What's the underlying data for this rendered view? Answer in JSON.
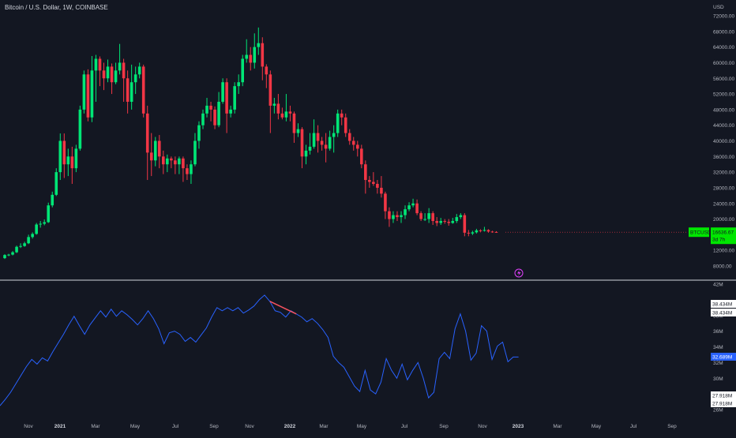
{
  "header": {
    "title": "Bitcoin / U.S. Dollar, 1W, COINBASE"
  },
  "colors": {
    "background": "#131722",
    "bullish": "#00e676",
    "bearish": "#f23645",
    "indicator_line": "#2962ff",
    "divergence_line": "#f7525f",
    "separator": "#d1d4dc",
    "price_label_bg": "#00e600",
    "indicator_label_bg": "#2962ff",
    "lightning_icon": "#e040fb"
  },
  "chart_data": [
    {
      "type": "candlestick",
      "title": "Bitcoin / U.S. Dollar, 1W, COINBASE",
      "currency_label": "USD",
      "y_ticks": [
        "72000.00",
        "68000.00",
        "64000.00",
        "60000.00",
        "56000.00",
        "52000.00",
        "48000.00",
        "44000.00",
        "40000.00",
        "36000.00",
        "32000.00",
        "28000.00",
        "24000.00",
        "20000.00",
        "16000.00",
        "12000.00",
        "8000.00"
      ],
      "ylim": [
        6000,
        74500
      ],
      "last_price_label": "BTCUSD",
      "last_price": "16636.67",
      "countdown": "3d 7h",
      "x_ticks": [
        "Nov",
        "2021",
        "Mar",
        "May",
        "Jul",
        "Sep",
        "Nov",
        "2022",
        "Mar",
        "May",
        "Jul",
        "Sep",
        "Nov",
        "2023",
        "Mar",
        "May",
        "Jul",
        "Sep"
      ],
      "year_ticks": [
        "2021",
        "2022",
        "2023"
      ],
      "candles": [
        {
          "o": 10000,
          "c": 10800,
          "h": 11000,
          "l": 9800
        },
        {
          "o": 10800,
          "c": 10900,
          "h": 11100,
          "l": 10500
        },
        {
          "o": 10900,
          "c": 11500,
          "h": 11800,
          "l": 10700
        },
        {
          "o": 11500,
          "c": 12900,
          "h": 13200,
          "l": 11300
        },
        {
          "o": 12900,
          "c": 13100,
          "h": 13800,
          "l": 12600
        },
        {
          "o": 13100,
          "c": 13800,
          "h": 14200,
          "l": 12900
        },
        {
          "o": 13800,
          "c": 15400,
          "h": 16000,
          "l": 13600
        },
        {
          "o": 15400,
          "c": 16200,
          "h": 16600,
          "l": 15000
        },
        {
          "o": 16200,
          "c": 18600,
          "h": 19000,
          "l": 16000
        },
        {
          "o": 18600,
          "c": 18800,
          "h": 19500,
          "l": 17800
        },
        {
          "o": 18800,
          "c": 19200,
          "h": 19900,
          "l": 18400
        },
        {
          "o": 19200,
          "c": 23500,
          "h": 24200,
          "l": 19000
        },
        {
          "o": 23500,
          "c": 26200,
          "h": 27000,
          "l": 23000
        },
        {
          "o": 26200,
          "c": 32000,
          "h": 33000,
          "l": 25900
        },
        {
          "o": 32000,
          "c": 40000,
          "h": 41900,
          "l": 30000
        },
        {
          "o": 40000,
          "c": 34000,
          "h": 41900,
          "l": 30500
        },
        {
          "o": 34000,
          "c": 36000,
          "h": 38000,
          "l": 31000
        },
        {
          "o": 36000,
          "c": 33000,
          "h": 38500,
          "l": 29000
        },
        {
          "o": 33000,
          "c": 38000,
          "h": 39000,
          "l": 32000
        },
        {
          "o": 38000,
          "c": 48000,
          "h": 49000,
          "l": 37500
        },
        {
          "o": 48000,
          "c": 57000,
          "h": 58000,
          "l": 47000
        },
        {
          "o": 57000,
          "c": 46000,
          "h": 58300,
          "l": 45000
        },
        {
          "o": 46000,
          "c": 58000,
          "h": 61700,
          "l": 44800
        },
        {
          "o": 58000,
          "c": 61000,
          "h": 62000,
          "l": 50000
        },
        {
          "o": 61000,
          "c": 58000,
          "h": 61600,
          "l": 54000
        },
        {
          "o": 58000,
          "c": 56000,
          "h": 60000,
          "l": 53000
        },
        {
          "o": 56000,
          "c": 59000,
          "h": 60800,
          "l": 55000
        },
        {
          "o": 59000,
          "c": 55000,
          "h": 59800,
          "l": 52000
        },
        {
          "o": 55000,
          "c": 58000,
          "h": 60000,
          "l": 54500
        },
        {
          "o": 58000,
          "c": 60000,
          "h": 64800,
          "l": 57000
        },
        {
          "o": 60000,
          "c": 56000,
          "h": 61000,
          "l": 50000
        },
        {
          "o": 56000,
          "c": 50000,
          "h": 58000,
          "l": 47000
        },
        {
          "o": 50000,
          "c": 55000,
          "h": 59500,
          "l": 48000
        },
        {
          "o": 55000,
          "c": 57000,
          "h": 59000,
          "l": 52000
        },
        {
          "o": 57000,
          "c": 59000,
          "h": 60000,
          "l": 56000
        },
        {
          "o": 59000,
          "c": 47000,
          "h": 59500,
          "l": 46000
        },
        {
          "o": 47000,
          "c": 37000,
          "h": 49000,
          "l": 30000
        },
        {
          "o": 37000,
          "c": 35000,
          "h": 42000,
          "l": 31000
        },
        {
          "o": 35000,
          "c": 40000,
          "h": 41000,
          "l": 33500
        },
        {
          "o": 40000,
          "c": 36000,
          "h": 41500,
          "l": 33000
        },
        {
          "o": 36000,
          "c": 34000,
          "h": 37500,
          "l": 31500
        },
        {
          "o": 34000,
          "c": 35500,
          "h": 36500,
          "l": 32000
        },
        {
          "o": 35500,
          "c": 35000,
          "h": 36000,
          "l": 33000
        },
        {
          "o": 35000,
          "c": 34000,
          "h": 36000,
          "l": 31500
        },
        {
          "o": 34000,
          "c": 35500,
          "h": 36000,
          "l": 31500
        },
        {
          "o": 35500,
          "c": 33000,
          "h": 36000,
          "l": 29500
        },
        {
          "o": 33000,
          "c": 31500,
          "h": 34000,
          "l": 30000
        },
        {
          "o": 31500,
          "c": 34000,
          "h": 35000,
          "l": 29000
        },
        {
          "o": 34000,
          "c": 40000,
          "h": 42000,
          "l": 33500
        },
        {
          "o": 40000,
          "c": 44000,
          "h": 45000,
          "l": 38000
        },
        {
          "o": 44000,
          "c": 47000,
          "h": 48000,
          "l": 43000
        },
        {
          "o": 47000,
          "c": 49000,
          "h": 51000,
          "l": 46000
        },
        {
          "o": 49000,
          "c": 48000,
          "h": 50000,
          "l": 45000
        },
        {
          "o": 48000,
          "c": 44000,
          "h": 48800,
          "l": 43000
        },
        {
          "o": 44000,
          "c": 50000,
          "h": 52500,
          "l": 43500
        },
        {
          "o": 50000,
          "c": 55000,
          "h": 56000,
          "l": 49500
        },
        {
          "o": 55000,
          "c": 47000,
          "h": 56000,
          "l": 42000
        },
        {
          "o": 47000,
          "c": 48000,
          "h": 49000,
          "l": 46000
        },
        {
          "o": 48000,
          "c": 54000,
          "h": 55000,
          "l": 47000
        },
        {
          "o": 54000,
          "c": 55000,
          "h": 57000,
          "l": 52000
        },
        {
          "o": 55000,
          "c": 61000,
          "h": 62000,
          "l": 54000
        },
        {
          "o": 61000,
          "c": 62000,
          "h": 66000,
          "l": 60000
        },
        {
          "o": 62000,
          "c": 60000,
          "h": 64000,
          "l": 58000
        },
        {
          "o": 60000,
          "c": 64000,
          "h": 67500,
          "l": 58500
        },
        {
          "o": 64000,
          "c": 65000,
          "h": 69000,
          "l": 62000
        },
        {
          "o": 65000,
          "c": 59000,
          "h": 66500,
          "l": 55500
        },
        {
          "o": 59000,
          "c": 57000,
          "h": 59600,
          "l": 53500
        },
        {
          "o": 57000,
          "c": 49000,
          "h": 58000,
          "l": 42000
        },
        {
          "o": 49000,
          "c": 49500,
          "h": 51000,
          "l": 47000
        },
        {
          "o": 49500,
          "c": 47000,
          "h": 52000,
          "l": 45500
        },
        {
          "o": 47000,
          "c": 46000,
          "h": 48500,
          "l": 45500
        },
        {
          "o": 46000,
          "c": 47500,
          "h": 52000,
          "l": 45000
        },
        {
          "o": 47500,
          "c": 47000,
          "h": 49000,
          "l": 45000
        },
        {
          "o": 47000,
          "c": 42000,
          "h": 47500,
          "l": 39500
        },
        {
          "o": 42000,
          "c": 43000,
          "h": 44500,
          "l": 41000
        },
        {
          "o": 43000,
          "c": 36000,
          "h": 43500,
          "l": 33000
        },
        {
          "o": 36000,
          "c": 37500,
          "h": 39000,
          "l": 34000
        },
        {
          "o": 37500,
          "c": 38500,
          "h": 42000,
          "l": 36500
        },
        {
          "o": 38500,
          "c": 42000,
          "h": 45500,
          "l": 38000
        },
        {
          "o": 42000,
          "c": 40000,
          "h": 44000,
          "l": 37000
        },
        {
          "o": 40000,
          "c": 39000,
          "h": 41000,
          "l": 37500
        },
        {
          "o": 39000,
          "c": 38000,
          "h": 42000,
          "l": 34500
        },
        {
          "o": 38000,
          "c": 41000,
          "h": 42600,
          "l": 37500
        },
        {
          "o": 41000,
          "c": 42000,
          "h": 44000,
          "l": 37000
        },
        {
          "o": 42000,
          "c": 47000,
          "h": 48000,
          "l": 41000
        },
        {
          "o": 47000,
          "c": 46000,
          "h": 48000,
          "l": 44000
        },
        {
          "o": 46000,
          "c": 42000,
          "h": 47000,
          "l": 41000
        },
        {
          "o": 42000,
          "c": 40000,
          "h": 43000,
          "l": 39000
        },
        {
          "o": 40000,
          "c": 39000,
          "h": 41000,
          "l": 37500
        },
        {
          "o": 39000,
          "c": 38000,
          "h": 40000,
          "l": 36000
        },
        {
          "o": 38000,
          "c": 34000,
          "h": 39000,
          "l": 33000
        },
        {
          "o": 34000,
          "c": 30000,
          "h": 35000,
          "l": 26500
        },
        {
          "o": 30000,
          "c": 29500,
          "h": 31000,
          "l": 28000
        },
        {
          "o": 29500,
          "c": 29000,
          "h": 32000,
          "l": 28500
        },
        {
          "o": 29000,
          "c": 28000,
          "h": 30000,
          "l": 26500
        },
        {
          "o": 28000,
          "c": 26500,
          "h": 31000,
          "l": 25500
        },
        {
          "o": 26500,
          "c": 22000,
          "h": 27000,
          "l": 20000
        },
        {
          "o": 22000,
          "c": 20000,
          "h": 23000,
          "l": 18000
        },
        {
          "o": 20000,
          "c": 21000,
          "h": 22000,
          "l": 19000
        },
        {
          "o": 21000,
          "c": 20500,
          "h": 22000,
          "l": 19500
        },
        {
          "o": 20500,
          "c": 21000,
          "h": 22000,
          "l": 19000
        },
        {
          "o": 21000,
          "c": 22500,
          "h": 23500,
          "l": 20000
        },
        {
          "o": 22500,
          "c": 23500,
          "h": 24300,
          "l": 22000
        },
        {
          "o": 23500,
          "c": 24000,
          "h": 25200,
          "l": 23000
        },
        {
          "o": 24000,
          "c": 21500,
          "h": 25000,
          "l": 21000
        },
        {
          "o": 21500,
          "c": 20000,
          "h": 22000,
          "l": 19500
        },
        {
          "o": 20000,
          "c": 20000,
          "h": 21500,
          "l": 19500
        },
        {
          "o": 20000,
          "c": 21500,
          "h": 22800,
          "l": 19000
        },
        {
          "o": 21500,
          "c": 19500,
          "h": 22000,
          "l": 18500
        },
        {
          "o": 19500,
          "c": 19000,
          "h": 20500,
          "l": 18200
        },
        {
          "o": 19000,
          "c": 19500,
          "h": 20300,
          "l": 18500
        },
        {
          "o": 19500,
          "c": 19300,
          "h": 20000,
          "l": 18800
        },
        {
          "o": 19300,
          "c": 19000,
          "h": 20000,
          "l": 18300
        },
        {
          "o": 19000,
          "c": 19500,
          "h": 20300,
          "l": 18800
        },
        {
          "o": 19500,
          "c": 20500,
          "h": 21300,
          "l": 19000
        },
        {
          "o": 20500,
          "c": 21000,
          "h": 21500,
          "l": 20000
        },
        {
          "o": 21000,
          "c": 16500,
          "h": 21500,
          "l": 15600
        },
        {
          "o": 16500,
          "c": 16300,
          "h": 17200,
          "l": 15600
        },
        {
          "o": 16300,
          "c": 16600,
          "h": 17000,
          "l": 15900
        },
        {
          "o": 16600,
          "c": 17100,
          "h": 17500,
          "l": 16300
        },
        {
          "o": 17100,
          "c": 17000,
          "h": 17400,
          "l": 16600
        },
        {
          "o": 17000,
          "c": 17200,
          "h": 18000,
          "l": 16800
        },
        {
          "o": 17200,
          "c": 16800,
          "h": 17400,
          "l": 16500
        },
        {
          "o": 16800,
          "c": 16700,
          "h": 17000,
          "l": 16500
        },
        {
          "o": 16700,
          "c": 16637,
          "h": 16900,
          "l": 16500
        }
      ]
    },
    {
      "type": "line",
      "y_ticks": [
        "42M",
        "38M",
        "36M",
        "34M",
        "32M",
        "30M",
        "28M",
        "26M"
      ],
      "ylim": [
        25.6,
        42.4
      ],
      "labels": {
        "upper_1": "38.434M",
        "upper_2": "38.434M",
        "current": "32.689M",
        "lower_1": "27.918M",
        "lower_2": "27.918M"
      },
      "series": [
        {
          "values": [
            26.5,
            27.3,
            28.2,
            29.3,
            30.4,
            31.5,
            32.4,
            31.8,
            32.6,
            32.2,
            33.4,
            34.5,
            35.6,
            36.8,
            37.9,
            36.7,
            35.6,
            36.8,
            37.7,
            38.6,
            37.8,
            38.8,
            37.9,
            38.6,
            38.1,
            37.5,
            36.8,
            37.6,
            38.6,
            37.6,
            36.3,
            34.4,
            35.8,
            36.0,
            35.6,
            34.7,
            35.2,
            34.6,
            35.5,
            36.4,
            37.8,
            39.0,
            38.6,
            39.0,
            38.6,
            39.0,
            38.3,
            38.7,
            39.2,
            40.0,
            40.6,
            39.8,
            38.6,
            38.4,
            37.8,
            38.6,
            38.2,
            37.8,
            37.2,
            37.6,
            37.0,
            36.2,
            35.2,
            32.8,
            32.0,
            31.4,
            30.2,
            29.0,
            28.3,
            31.0,
            28.5,
            28.0,
            29.5,
            32.5,
            31.0,
            30.0,
            31.8,
            29.8,
            31.0,
            32.0,
            30.0,
            27.5,
            28.2,
            32.5,
            33.3,
            32.5,
            36.3,
            38.2,
            36.0,
            32.3,
            33.2,
            36.7,
            36.0,
            32.4,
            34.1,
            34.6,
            32.1,
            32.7,
            32.7
          ]
        }
      ],
      "divergence_from_index": 51,
      "divergence_to_index": 56
    }
  ]
}
